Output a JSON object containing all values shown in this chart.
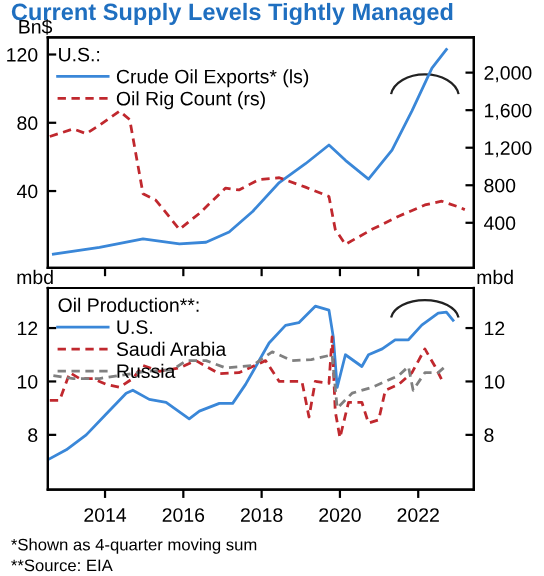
{
  "chart_data": [
    {
      "type": "line",
      "title": "Current Supply Levels Tightly Managed",
      "ylabel": "Bn$",
      "legend_title": "U.S.:",
      "legend": "top left",
      "tick_labels": "y",
      "xlim": [
        2012.54,
        2023.42
      ],
      "xticks": [
        2014,
        2016,
        2018,
        2020,
        2022
      ],
      "ylim": [
        -5,
        130
      ],
      "yticks": [
        40,
        80,
        120
      ],
      "y2lim": [
        -80,
        2375
      ],
      "y2ticks": [
        {
          "value": 400,
          "label": "400"
        },
        {
          "value": 800,
          "label": "800"
        },
        {
          "value": 1200,
          "label": "1,200"
        },
        {
          "value": 1600,
          "label": "1,600"
        },
        {
          "value": 2000,
          "label": "2,000"
        }
      ],
      "series": [
        {
          "name": "Crude Oil Exports* (ls)",
          "color": "#3a87d8",
          "line_style": "solid",
          "x": [
            2012.68,
            2013.86,
            2014.97,
            2015.9,
            2016.58,
            2017.17,
            2017.77,
            2018.45,
            2019.12,
            2019.72,
            2020.14,
            2020.73,
            2021.33,
            2021.84,
            2022.35,
            2022.72
          ],
          "values": [
            3,
            7,
            12,
            9,
            10,
            16,
            28,
            45,
            56,
            67,
            58,
            47,
            64,
            87,
            112,
            123
          ]
        },
        {
          "name": "Oil Rig Count (rs)",
          "color": "#c0282e",
          "line_style": "dashed",
          "axis": "y2",
          "x": [
            2012.59,
            2013.19,
            2013.52,
            2013.86,
            2014.37,
            2014.63,
            2014.97,
            2015.3,
            2015.9,
            2016.41,
            2017.08,
            2017.42,
            2017.93,
            2018.45,
            2019.12,
            2019.72,
            2019.88,
            2020.14,
            2020.82,
            2021.5,
            2022.17,
            2022.6,
            2023.02,
            2023.19
          ],
          "values": [
            1320,
            1400,
            1350,
            1440,
            1590,
            1500,
            710,
            640,
            330,
            500,
            770,
            750,
            860,
            880,
            780,
            680,
            330,
            170,
            330,
            470,
            590,
            630,
            570,
            540
          ]
        }
      ]
    },
    {
      "type": "line",
      "ylabel": "mbd",
      "y2label": "mbd",
      "legend_title": "Oil Production**:",
      "legend": "top left",
      "xlim": [
        2012.54,
        2023.42
      ],
      "xticks": [
        2014,
        2016,
        2018,
        2020,
        2022
      ],
      "ylim": [
        5.95,
        13.5
      ],
      "yticks": [
        8,
        10,
        12
      ],
      "y2lim": [
        5.95,
        13.5
      ],
      "y2ticks": [
        8,
        10,
        12
      ],
      "annotations": [
        "*Shown as 4-quarter moving sum",
        "**Source: EIA"
      ],
      "series": [
        {
          "name": "U.S.",
          "color": "#3a87d8",
          "line_style": "solid",
          "x": [
            2012.59,
            2013.01,
            2013.52,
            2014.03,
            2014.54,
            2014.71,
            2015.13,
            2015.56,
            2016.15,
            2016.41,
            2016.92,
            2017.26,
            2017.59,
            2017.85,
            2018.19,
            2018.61,
            2018.95,
            2019.37,
            2019.72,
            2019.83,
            2019.93,
            2020.14,
            2020.56,
            2020.73,
            2021.08,
            2021.41,
            2021.75,
            2022.09,
            2022.51,
            2022.72,
            2022.89
          ],
          "values": [
            7.11,
            7.44,
            8.0,
            8.78,
            9.56,
            9.67,
            9.33,
            9.22,
            8.6,
            8.89,
            9.18,
            9.18,
            9.89,
            10.56,
            11.44,
            12.1,
            12.2,
            12.82,
            12.67,
            11.67,
            9.78,
            11.0,
            10.56,
            11.0,
            11.22,
            11.56,
            11.56,
            12.11,
            12.56,
            12.6,
            12.29
          ]
        },
        {
          "name": "Saudi Arabia",
          "color": "#c0282e",
          "line_style": "dashed",
          "x": [
            2012.59,
            2012.84,
            2013.1,
            2013.35,
            2013.69,
            2014.03,
            2014.37,
            2014.71,
            2014.97,
            2015.39,
            2015.9,
            2016.32,
            2016.92,
            2017.42,
            2017.77,
            2018.1,
            2018.45,
            2018.78,
            2019.03,
            2019.21,
            2019.37,
            2019.72,
            2019.8,
            2019.88,
            2020.0,
            2020.22,
            2020.56,
            2020.73,
            2020.99,
            2021.16,
            2021.5,
            2021.84,
            2022.17,
            2022.43,
            2022.6
          ],
          "values": [
            9.29,
            9.29,
            10.33,
            10.11,
            10.11,
            9.89,
            9.78,
            10.11,
            10.6,
            10.38,
            10.51,
            10.78,
            10.29,
            10.33,
            10.56,
            10.78,
            10.0,
            10.0,
            10.0,
            8.67,
            10.0,
            9.93,
            11.67,
            8.89,
            7.89,
            9.22,
            9.22,
            8.44,
            8.56,
            9.67,
            9.89,
            10.33,
            11.22,
            10.56,
            10.07
          ]
        },
        {
          "name": "Russia",
          "color": "#808080",
          "line_style": "dashed",
          "x": [
            2012.68,
            2013.19,
            2013.86,
            2014.37,
            2015.05,
            2015.73,
            2016.07,
            2016.58,
            2017.08,
            2017.77,
            2018.27,
            2018.78,
            2019.27,
            2019.8,
            2019.93,
            2020.31,
            2020.82,
            2021.5,
            2021.75,
            2021.87,
            2022.17,
            2022.51,
            2022.65
          ],
          "values": [
            10.22,
            10.11,
            10.11,
            10.22,
            10.38,
            10.44,
            10.78,
            10.78,
            10.51,
            10.6,
            11.11,
            10.78,
            10.82,
            11.0,
            9.0,
            9.56,
            9.78,
            10.22,
            10.56,
            9.67,
            10.33,
            10.33,
            10.51
          ]
        }
      ]
    }
  ]
}
